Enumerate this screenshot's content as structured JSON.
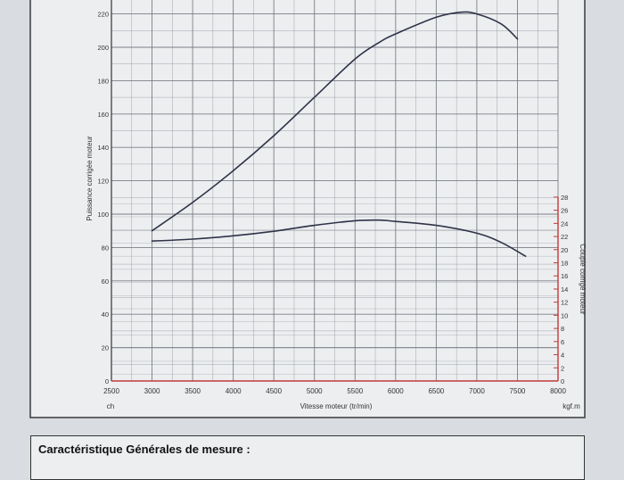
{
  "chart_data": {
    "type": "line",
    "xlabel": "Vitesse moteur (tr/min)",
    "ylabel_left": "Puissance corrigée moteur",
    "ylabel_right": "Couple corrigé moteur",
    "unit_left": "ch",
    "unit_right": "kgf.m",
    "xlim": [
      2500,
      8000
    ],
    "ylim_left": [
      0,
      230
    ],
    "ylim_right": [
      0,
      28
    ],
    "x_ticks": [
      "2500",
      "3000",
      "3500",
      "4000",
      "4500",
      "5000",
      "5500",
      "6000",
      "6500",
      "7000",
      "7500",
      "8000"
    ],
    "y_ticks_left": [
      "0",
      "20",
      "40",
      "60",
      "80",
      "100",
      "120",
      "140",
      "160",
      "180",
      "200",
      "220"
    ],
    "y_ticks_right": [
      "0",
      "2",
      "4",
      "6",
      "8",
      "10",
      "12",
      "14",
      "16",
      "18",
      "20",
      "22",
      "24",
      "26",
      "28"
    ],
    "grid": true,
    "series": [
      {
        "axis": "left",
        "x": [
          3000,
          3500,
          4000,
          4500,
          5000,
          5500,
          5800,
          6000,
          6500,
          6800,
          7000,
          7300,
          7500
        ],
        "values": [
          90,
          107,
          126,
          147,
          170,
          193,
          203,
          208,
          218,
          221,
          220,
          214,
          205
        ]
      },
      {
        "axis": "right",
        "x": [
          3000,
          3500,
          4000,
          4500,
          5000,
          5500,
          5800,
          6000,
          6500,
          7000,
          7300,
          7600
        ],
        "values": [
          21.3,
          21.6,
          22.1,
          22.8,
          23.7,
          24.4,
          24.5,
          24.3,
          23.7,
          22.5,
          21.1,
          19.0
        ]
      }
    ]
  },
  "colors": {
    "curve": "#2f3347",
    "grid": "#6f737d",
    "right_axis": "#c03a3a"
  },
  "footer": {
    "title": "Caractéristique Générales de mesure :"
  }
}
